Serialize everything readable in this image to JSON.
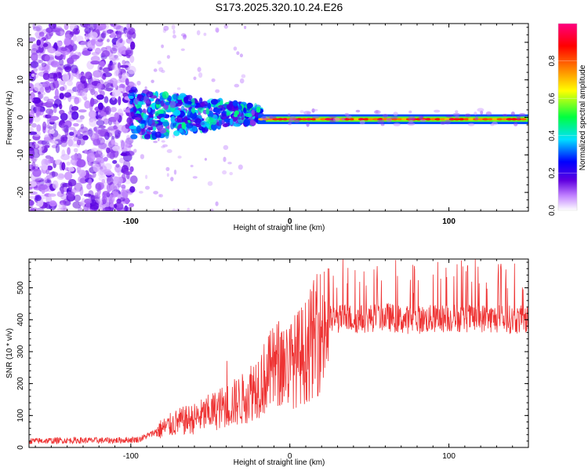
{
  "chart_data": [
    {
      "type": "heatmap",
      "title": "S173.2025.320.10.24.E26",
      "xlabel": "Height of straight line (km)",
      "ylabel": "Frequency (Hz)",
      "xlim": [
        -164,
        150
      ],
      "ylim": [
        -25,
        25
      ],
      "x_ticks": [
        "-100",
        "0",
        "100"
      ],
      "y_ticks": [
        "-20",
        "-10",
        "0",
        "10",
        "20"
      ],
      "colorbar": {
        "label": "Normalized spectral amplitude",
        "range": [
          0,
          1
        ],
        "ticks": [
          "0.0",
          "0.2",
          "0.4",
          "0.6",
          "0.8"
        ],
        "colors": [
          "#ffffff",
          "#c080ff",
          "#6000e0",
          "#0000ff",
          "#00e0ff",
          "#00ff40",
          "#ffff00",
          "#ff8000",
          "#ff0000",
          "#ff0080"
        ]
      },
      "description_points": [
        {
          "x": -130,
          "freq_spread": 25,
          "amplitude": 0.15
        },
        {
          "x": -80,
          "freq_spread": 6,
          "amplitude": 0.35
        },
        {
          "x": -40,
          "freq_spread": 4,
          "amplitude": 0.45
        },
        {
          "x": -20,
          "freq_spread": 2,
          "amplitude": 0.6
        },
        {
          "x": 0,
          "freq_spread": 1,
          "amplitude": 0.85
        },
        {
          "x": 50,
          "freq_spread": 1,
          "amplitude": 0.9
        },
        {
          "x": 150,
          "freq_spread": 1,
          "amplitude": 0.9
        }
      ]
    },
    {
      "type": "line",
      "xlabel": "Height of straight line (km)",
      "ylabel": "SNR (10 * v/v)",
      "xlim": [
        -164,
        150
      ],
      "ylim": [
        0,
        590
      ],
      "x_ticks": [
        "-100",
        "0",
        "100"
      ],
      "y_ticks": [
        "0",
        "100",
        "200",
        "300",
        "400",
        "500"
      ],
      "series": [
        {
          "name": "SNR",
          "color": "#ee3333",
          "x": [
            -164,
            -140,
            -110,
            -95,
            -88,
            -80,
            -70,
            -60,
            -50,
            -40,
            -30,
            -20,
            -15,
            -10,
            -5,
            0,
            5,
            10,
            15,
            20,
            25,
            30,
            35,
            40,
            50,
            60,
            70,
            80,
            100,
            120,
            140,
            150
          ],
          "values": [
            20,
            22,
            22,
            25,
            40,
            60,
            80,
            90,
            110,
            130,
            150,
            200,
            220,
            250,
            270,
            260,
            280,
            300,
            340,
            370,
            400,
            400,
            410,
            400,
            405,
            410,
            400,
            400,
            405,
            405,
            400,
            400
          ]
        }
      ]
    }
  ]
}
